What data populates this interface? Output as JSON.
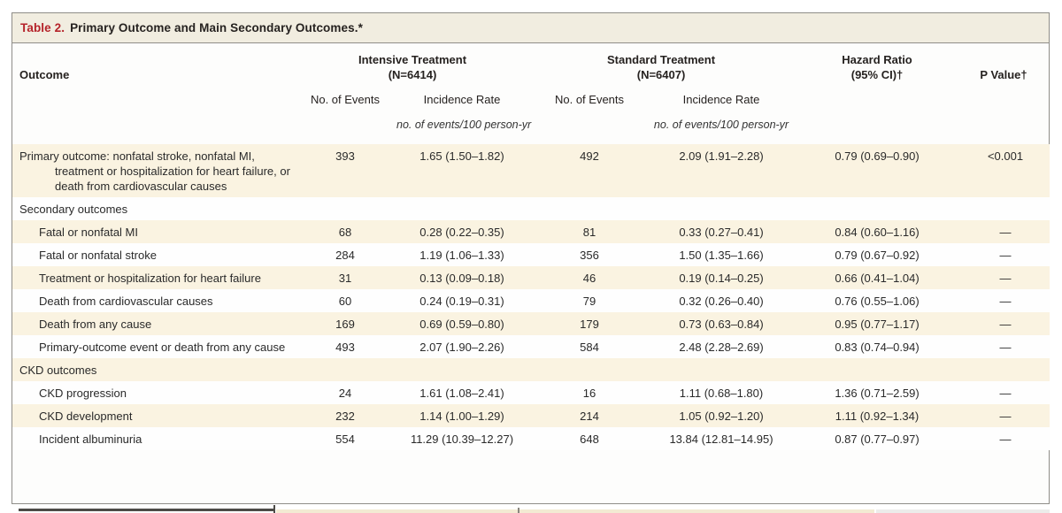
{
  "title": {
    "number": "Table 2.",
    "text": "Primary Outcome and Main Secondary Outcomes.*"
  },
  "colors": {
    "title_red": "#b5232a",
    "title_bar_bg": "#f1ede0",
    "shaded_row_bg": "#faf3e1",
    "border_gray": "#8f8d88"
  },
  "header": {
    "outcome": "Outcome",
    "intensive": {
      "name": "Intensive Treatment",
      "n": "(N=6414)"
    },
    "standard": {
      "name": "Standard Treatment",
      "n": "(N=6407)"
    },
    "hazard": {
      "line1": "Hazard Ratio",
      "line2": "(95% CI)†"
    },
    "p_value": "P Value†",
    "events": "No. of Events",
    "rate": "Incidence Rate",
    "units": "no. of events/100 person-yr"
  },
  "rows": [
    {
      "label": "Primary outcome: nonfatal stroke, nonfatal MI, treatment or hospitalization for heart failure, or death from cardiovascular causes",
      "cells": [
        "393",
        "1.65 (1.50–1.82)",
        "492",
        "2.09 (1.91–2.28)",
        "0.79 (0.69–0.90)",
        "<0.001"
      ]
    },
    {
      "label": "Secondary outcomes",
      "cells": [
        "",
        "",
        "",
        "",
        "",
        ""
      ]
    },
    {
      "label": "Fatal or nonfatal MI",
      "cells": [
        "68",
        "0.28 (0.22–0.35)",
        "81",
        "0.33 (0.27–0.41)",
        "0.84 (0.60–1.16)",
        "—"
      ]
    },
    {
      "label": "Fatal or nonfatal stroke",
      "cells": [
        "284",
        "1.19 (1.06–1.33)",
        "356",
        "1.50 (1.35–1.66)",
        "0.79 (0.67–0.92)",
        "—"
      ]
    },
    {
      "label": "Treatment or hospitalization for heart failure",
      "cells": [
        "31",
        "0.13 (0.09–0.18)",
        "46",
        "0.19 (0.14–0.25)",
        "0.66 (0.41–1.04)",
        "—"
      ]
    },
    {
      "label": "Death from cardiovascular causes",
      "cells": [
        "60",
        "0.24 (0.19–0.31)",
        "79",
        "0.32 (0.26–0.40)",
        "0.76 (0.55–1.06)",
        "—"
      ]
    },
    {
      "label": "Death from any cause",
      "cells": [
        "169",
        "0.69 (0.59–0.80)",
        "179",
        "0.73 (0.63–0.84)",
        "0.95 (0.77–1.17)",
        "—"
      ]
    },
    {
      "label": "Primary-outcome event or death from any cause",
      "cells": [
        "493",
        "2.07 (1.90–2.26)",
        "584",
        "2.48 (2.28–2.69)",
        "0.83 (0.74–0.94)",
        "—"
      ]
    },
    {
      "label": "CKD outcomes",
      "cells": [
        "",
        "",
        "",
        "",
        "",
        ""
      ]
    },
    {
      "label": "CKD progression",
      "cells": [
        "24",
        "1.61 (1.08–2.41)",
        "16",
        "1.11 (0.68–1.80)",
        "1.36 (0.71–2.59)",
        "—"
      ]
    },
    {
      "label": "CKD development",
      "cells": [
        "232",
        "1.14 (1.00–1.29)",
        "214",
        "1.05 (0.92–1.20)",
        "1.11 (0.92–1.34)",
        "—"
      ]
    },
    {
      "label": "Incident albuminuria",
      "cells": [
        "554",
        "11.29 (10.39–12.27)",
        "648",
        "13.84 (12.81–14.95)",
        "0.87 (0.77–0.97)",
        "—"
      ]
    }
  ]
}
